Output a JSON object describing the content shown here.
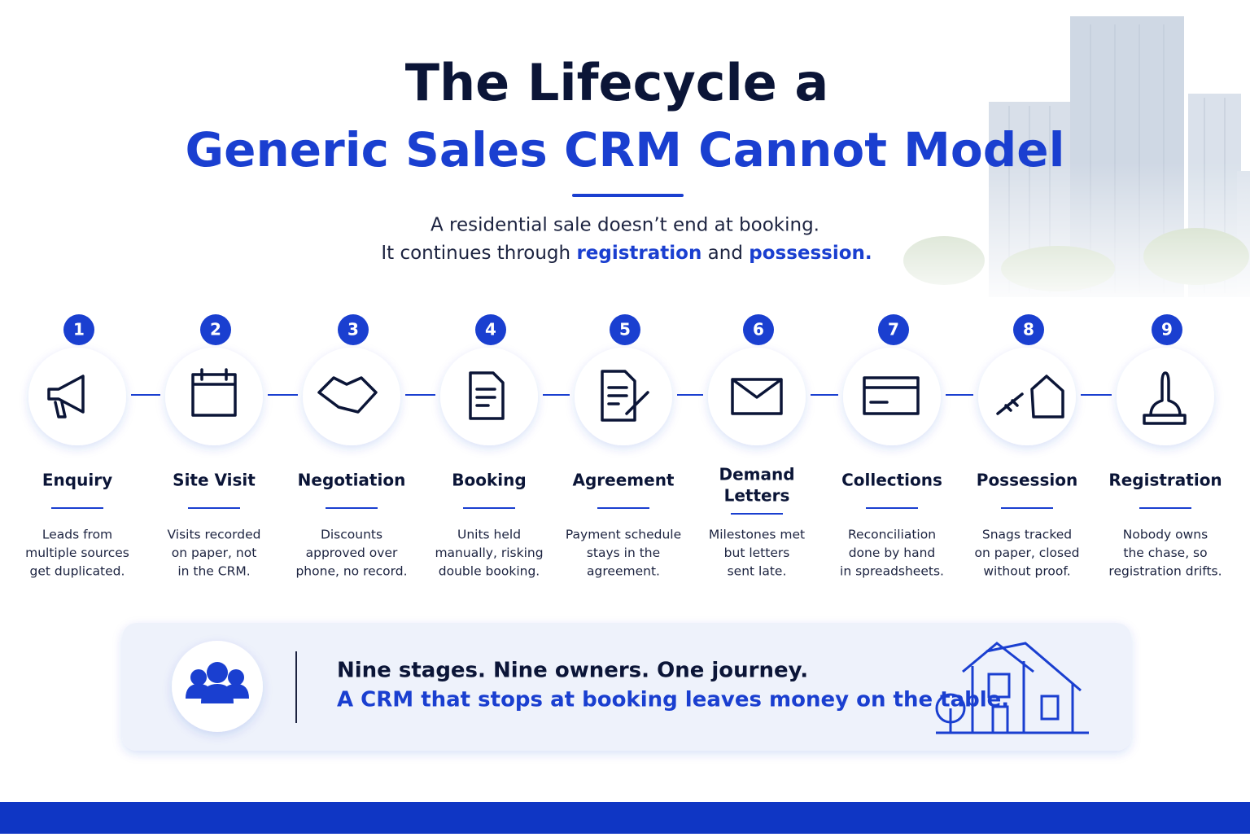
{
  "header": {
    "title_line1": "The Lifecycle a",
    "title_line2": "Generic Sales CRM Cannot Model",
    "subtitle_line1": "A residential sale doesn’t end at booking.",
    "subtitle_line2": [
      "It continues through ",
      "registration",
      " and ",
      "possession."
    ]
  },
  "stages": [
    {
      "number": "1",
      "label": [
        "Enquiry"
      ],
      "description": [
        "Leads from",
        "multiple sources",
        "get duplicated."
      ]
    },
    {
      "number": "2",
      "label": [
        "Site Visit"
      ],
      "description": [
        "Visits recorded",
        "on paper, not",
        "in the CRM."
      ]
    },
    {
      "number": "3",
      "label": [
        "Negotiation"
      ],
      "description": [
        "Discounts",
        "approved over",
        "phone, no record."
      ]
    },
    {
      "number": "4",
      "label": [
        "Booking"
      ],
      "description": [
        "Units held",
        "manually, risking",
        "double booking."
      ]
    },
    {
      "number": "5",
      "label": [
        "Agreement"
      ],
      "description": [
        "Payment schedule",
        "stays in the",
        "agreement."
      ]
    },
    {
      "number": "6",
      "label": [
        "Demand",
        "Letters"
      ],
      "description": [
        "Milestones met",
        "but letters",
        "sent late."
      ]
    },
    {
      "number": "7",
      "label": [
        "Collections"
      ],
      "description": [
        "Reconciliation",
        "done by hand",
        "in spreadsheets."
      ]
    },
    {
      "number": "8",
      "label": [
        "Possession"
      ],
      "description": [
        "Snags tracked",
        "on paper, closed",
        "without proof."
      ]
    },
    {
      "number": "9",
      "label": [
        "Registration"
      ],
      "description": [
        "Nobody owns",
        "the chase, so",
        "registration drifts."
      ]
    }
  ],
  "footer": {
    "line1": "Nine stages. Nine owners. One journey.",
    "line2": "A CRM that stops at booking leaves money on the table."
  }
}
